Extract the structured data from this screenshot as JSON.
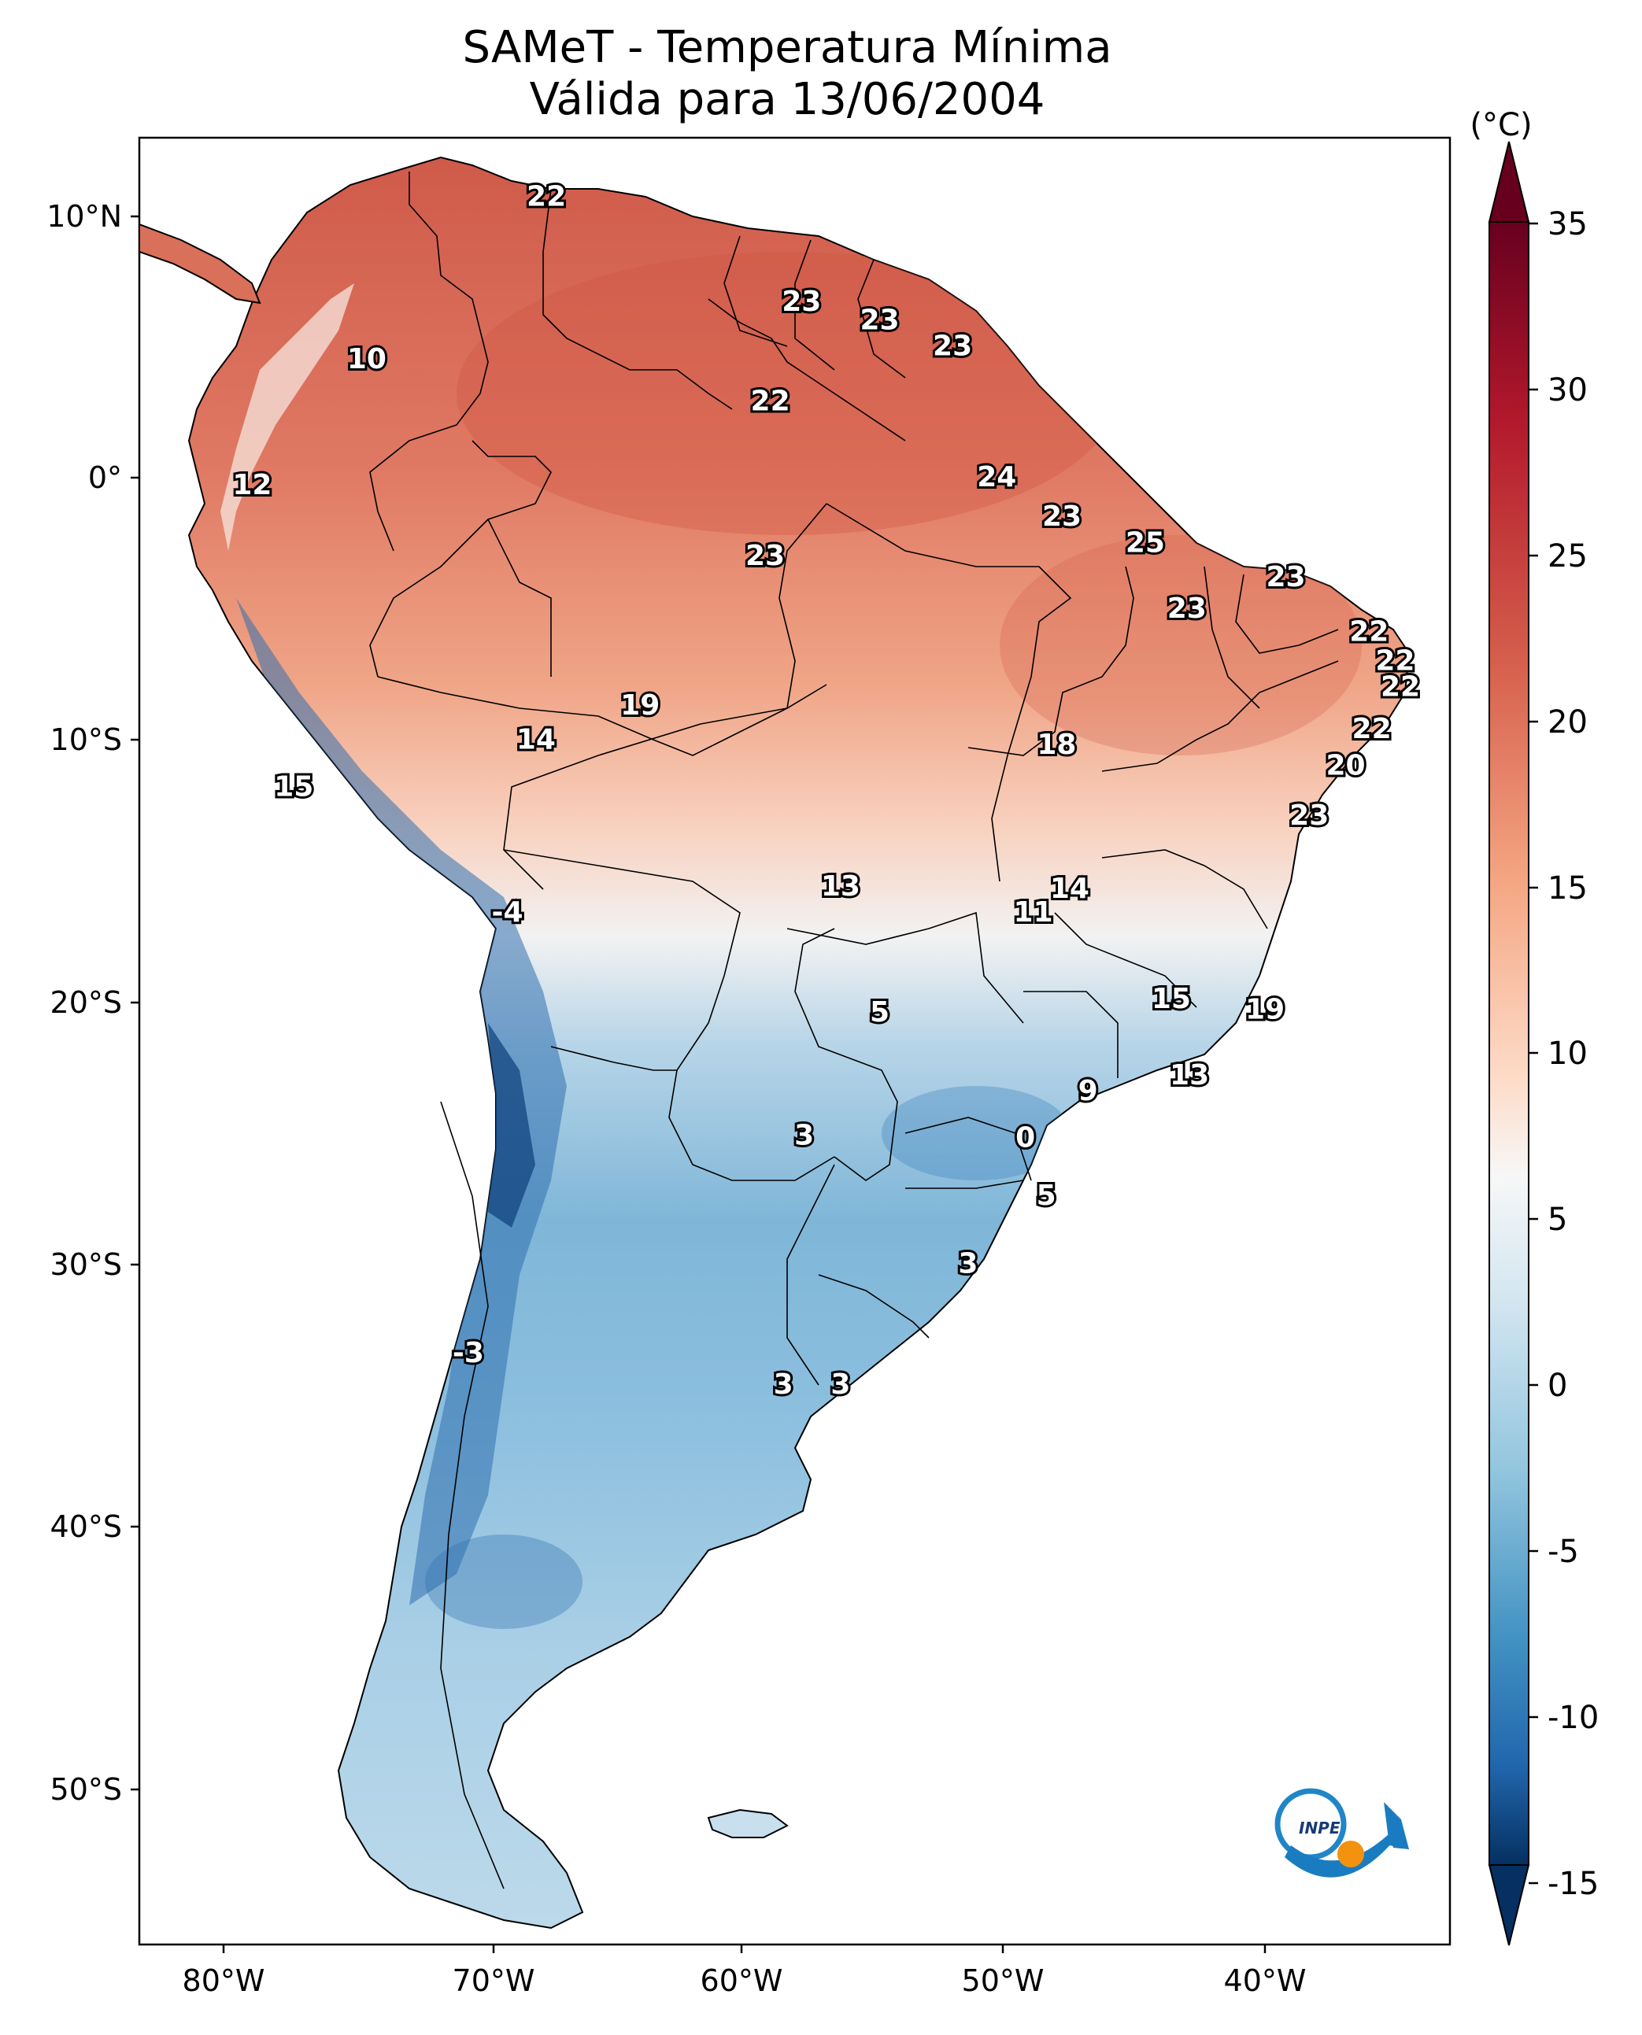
{
  "title": {
    "line1": "SAMeT - Temperatura Mínima",
    "line2": "Válida para 13/06/2004"
  },
  "map": {
    "lat_ticks": [
      "10°N",
      "0°",
      "10°S",
      "20°S",
      "30°S",
      "40°S",
      "50°S"
    ],
    "lon_ticks": [
      "80°W",
      "70°W",
      "60°W",
      "50°W",
      "40°W"
    ],
    "labels": [
      {
        "text": "22",
        "lon": -67.6,
        "lat": 10.7
      },
      {
        "text": "23",
        "lon": -57.8,
        "lat": 6.7
      },
      {
        "text": "23",
        "lon": -54.8,
        "lat": 6.0
      },
      {
        "text": "23",
        "lon": -52.0,
        "lat": 5.0
      },
      {
        "text": "10",
        "lon": -74.5,
        "lat": 4.5
      },
      {
        "text": "22",
        "lon": -59.0,
        "lat": 2.9
      },
      {
        "text": "12",
        "lon": -78.9,
        "lat": -0.3
      },
      {
        "text": "24",
        "lon": -50.3,
        "lat": 0.0
      },
      {
        "text": "23",
        "lon": -47.8,
        "lat": -1.5
      },
      {
        "text": "25",
        "lon": -44.6,
        "lat": -2.5
      },
      {
        "text": "23",
        "lon": -59.2,
        "lat": -3.0
      },
      {
        "text": "23",
        "lon": -39.2,
        "lat": -3.8
      },
      {
        "text": "23",
        "lon": -43.0,
        "lat": -5.0
      },
      {
        "text": "22",
        "lon": -36.0,
        "lat": -5.9
      },
      {
        "text": "22",
        "lon": -35.0,
        "lat": -7.0
      },
      {
        "text": "22",
        "lon": -34.8,
        "lat": -8.0
      },
      {
        "text": "19",
        "lon": -64.0,
        "lat": -8.7
      },
      {
        "text": "22",
        "lon": -35.9,
        "lat": -9.6
      },
      {
        "text": "14",
        "lon": -68.0,
        "lat": -10.0
      },
      {
        "text": "18",
        "lon": -48.0,
        "lat": -10.2
      },
      {
        "text": "20",
        "lon": -36.9,
        "lat": -11.0
      },
      {
        "text": "15",
        "lon": -77.3,
        "lat": -11.8
      },
      {
        "text": "23",
        "lon": -38.3,
        "lat": -12.9
      },
      {
        "text": "13",
        "lon": -56.3,
        "lat": -15.6
      },
      {
        "text": "14",
        "lon": -47.5,
        "lat": -15.7
      },
      {
        "text": "11",
        "lon": -48.9,
        "lat": -16.6
      },
      {
        "text": "-4",
        "lon": -69.1,
        "lat": -16.6
      },
      {
        "text": "15",
        "lon": -43.6,
        "lat": -19.9
      },
      {
        "text": "19",
        "lon": -40.0,
        "lat": -20.3
      },
      {
        "text": "5",
        "lon": -54.8,
        "lat": -20.4
      },
      {
        "text": "13",
        "lon": -42.9,
        "lat": -22.8
      },
      {
        "text": "9",
        "lon": -46.8,
        "lat": -23.4
      },
      {
        "text": "3",
        "lon": -57.7,
        "lat": -25.1
      },
      {
        "text": "0",
        "lon": -49.2,
        "lat": -25.2
      },
      {
        "text": "5",
        "lon": -48.4,
        "lat": -27.4
      },
      {
        "text": "3",
        "lon": -51.4,
        "lat": -30.0
      },
      {
        "text": "-3",
        "lon": -70.6,
        "lat": -33.4
      },
      {
        "text": "3",
        "lon": -58.5,
        "lat": -34.6
      },
      {
        "text": "3",
        "lon": -56.3,
        "lat": -34.6
      }
    ]
  },
  "colorbar": {
    "unit": "(°C)",
    "ticks": [
      "35",
      "30",
      "25",
      "20",
      "15",
      "10",
      "5",
      "0",
      "-5",
      "-10",
      "-15"
    ]
  },
  "logo": {
    "text": "INPE"
  }
}
